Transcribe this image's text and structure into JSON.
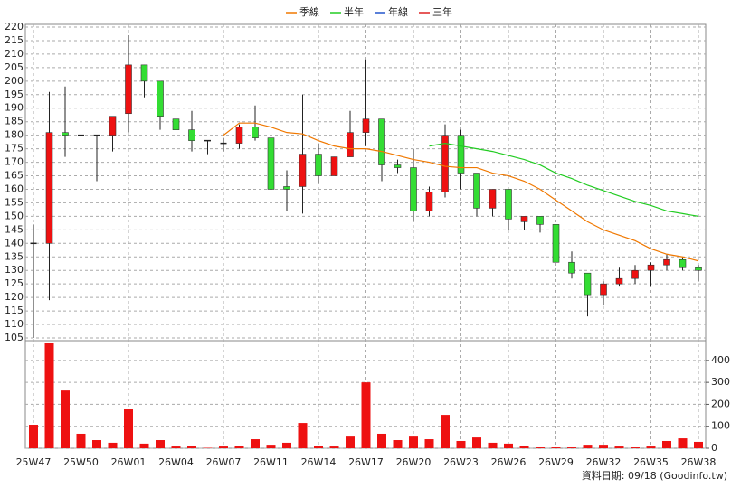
{
  "chart_data": {
    "type": "candlestick",
    "categories": [
      "25W47",
      null,
      null,
      "25W50",
      null,
      null,
      "26W01",
      null,
      null,
      "26W04",
      null,
      null,
      "26W07",
      null,
      null,
      "26W11",
      null,
      null,
      "26W14",
      null,
      null,
      "26W17",
      null,
      null,
      "26W20",
      null,
      null,
      "26W23",
      null,
      null,
      "26W26",
      null,
      null,
      "26W29",
      null,
      null,
      "26W32",
      null,
      null,
      "26W35",
      null,
      null,
      "26W38"
    ],
    "open": [
      140,
      140,
      181,
      180,
      180,
      180,
      188,
      206,
      200,
      186,
      182,
      178,
      177,
      177,
      183,
      179,
      161,
      161,
      173,
      165,
      172,
      181,
      186,
      169,
      168,
      152,
      159,
      180,
      166,
      153,
      160,
      148,
      150,
      147,
      133,
      129,
      121,
      125,
      127,
      130,
      132,
      134,
      131
    ],
    "high": [
      147,
      196,
      198,
      188,
      180,
      187,
      217,
      206,
      200,
      190,
      189,
      178,
      179,
      184,
      191,
      179,
      167,
      195,
      177,
      172,
      189,
      208,
      186,
      171,
      175,
      161,
      184,
      182,
      166,
      160,
      160,
      150,
      150,
      147,
      137,
      129,
      126,
      131,
      132,
      133,
      136,
      135,
      132
    ],
    "low": [
      105,
      119,
      172,
      171,
      163,
      174,
      181,
      194,
      182,
      182,
      174,
      173,
      174,
      175,
      178,
      157,
      152,
      151,
      162,
      165,
      172,
      176,
      163,
      166,
      148,
      150,
      157,
      160,
      150,
      150,
      145,
      145,
      144,
      133,
      127,
      113,
      117,
      124,
      125,
      124,
      130,
      130,
      126
    ],
    "close": [
      140,
      181,
      180,
      180,
      180,
      187,
      206,
      200,
      187,
      182,
      178,
      178,
      177,
      183,
      179,
      160,
      160,
      173,
      165,
      172,
      181,
      186,
      169,
      168,
      152,
      159,
      180,
      166,
      153,
      160,
      149,
      150,
      147,
      133,
      129,
      121,
      125,
      127,
      130,
      132,
      134,
      131,
      130
    ],
    "up_color": "#ee1111",
    "down_color": "#33dd33",
    "ylim": [
      104,
      221
    ],
    "yticks": [
      105,
      110,
      115,
      120,
      125,
      130,
      135,
      140,
      145,
      150,
      155,
      160,
      165,
      170,
      175,
      180,
      185,
      190,
      195,
      200,
      205,
      210,
      215,
      220
    ],
    "grid": true,
    "series": [
      {
        "name": "季線",
        "color": "#f07800",
        "values": [
          null,
          null,
          null,
          null,
          null,
          null,
          null,
          null,
          null,
          null,
          null,
          null,
          180,
          184.5,
          184.5,
          183,
          181,
          180.5,
          178,
          176,
          175,
          175,
          174,
          172.5,
          171,
          170,
          168.5,
          168,
          168,
          166,
          165,
          163,
          160,
          156,
          152,
          148,
          145,
          143,
          141,
          138,
          136,
          135,
          133.5
        ]
      },
      {
        "name": "半年",
        "color": "#22cc22",
        "values": [
          null,
          null,
          null,
          null,
          null,
          null,
          null,
          null,
          null,
          null,
          null,
          null,
          null,
          null,
          null,
          null,
          null,
          null,
          null,
          null,
          null,
          null,
          null,
          null,
          null,
          176,
          177,
          176,
          175,
          174,
          172.5,
          171,
          169,
          166,
          164,
          161.5,
          159.5,
          157.5,
          155.5,
          154,
          152,
          151,
          150
        ]
      },
      {
        "name": "年線",
        "color": "#2255cc",
        "values": [
          null,
          null,
          null,
          null,
          null,
          null,
          null,
          null,
          null,
          null,
          null,
          null,
          null,
          null,
          null,
          null,
          null,
          null,
          null,
          null,
          null,
          null,
          null,
          null,
          null,
          null,
          null,
          null,
          null,
          null,
          null,
          null,
          null,
          null,
          null,
          null,
          null,
          null,
          null,
          null,
          null,
          null,
          null
        ]
      },
      {
        "name": "三年",
        "color": "#dd2222",
        "values": [
          null,
          null,
          null,
          null,
          null,
          null,
          null,
          null,
          null,
          null,
          null,
          null,
          null,
          null,
          null,
          null,
          null,
          null,
          null,
          null,
          null,
          null,
          null,
          null,
          null,
          null,
          null,
          null,
          null,
          null,
          null,
          null,
          null,
          null,
          null,
          null,
          null,
          null,
          null,
          null,
          null,
          null,
          null
        ]
      }
    ],
    "volume": {
      "color": "#ee1111",
      "values": [
        107,
        481,
        263,
        66,
        37,
        25,
        177,
        21,
        37,
        8,
        12,
        2,
        8,
        12,
        41,
        16,
        25,
        115,
        12,
        8,
        53,
        300,
        66,
        37,
        53,
        41,
        152,
        33,
        49,
        25,
        21,
        12,
        4,
        4,
        4,
        16,
        16,
        8,
        4,
        8,
        33,
        45,
        29
      ],
      "ylim": [
        0,
        490
      ],
      "yticks": [
        0,
        100,
        200,
        300,
        400
      ]
    },
    "source": "資料日期: 09/18 (Goodinfo.tw)"
  }
}
